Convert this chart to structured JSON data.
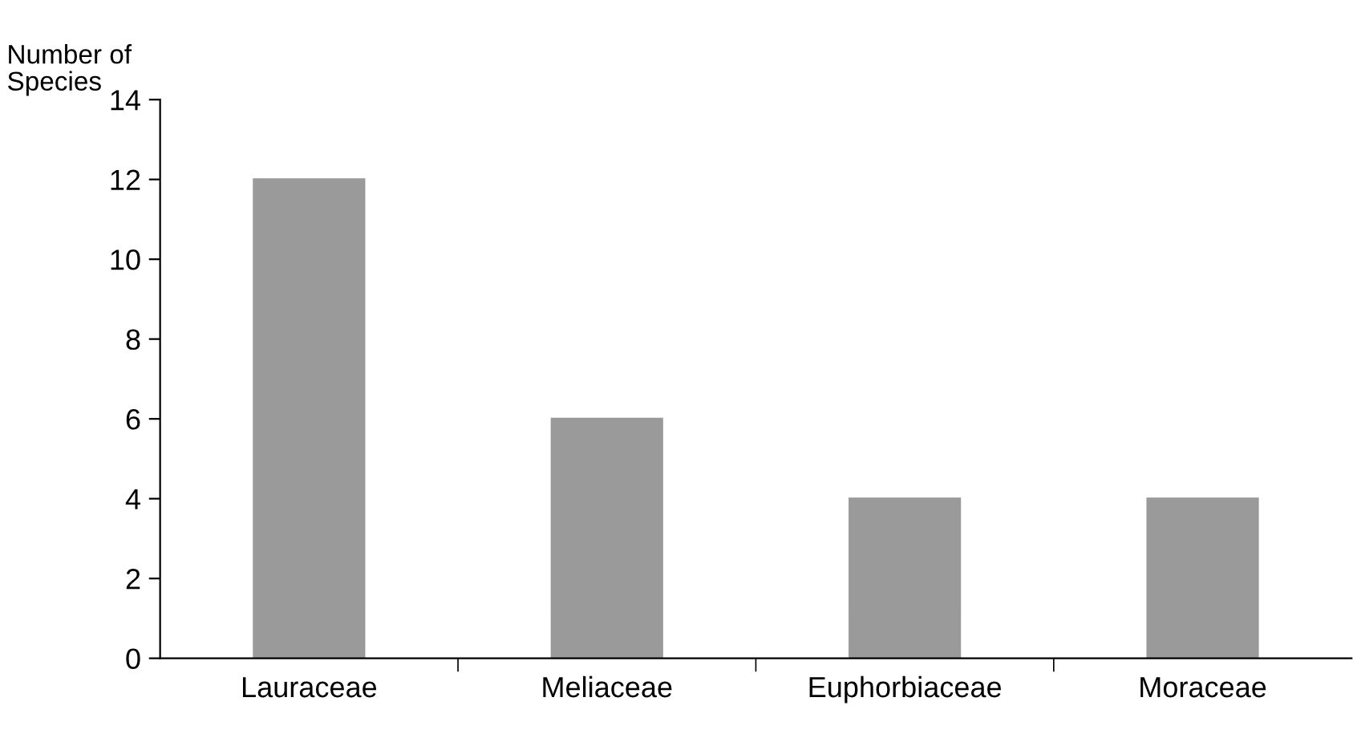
{
  "chart_data": {
    "type": "bar",
    "ylabel": "Number of\nSpecies",
    "categories": [
      "Lauraceae",
      "Meliaceae",
      "Euphorbiaceae",
      "Moraceae"
    ],
    "values": [
      12,
      6,
      4,
      4
    ],
    "color": "#9a9a9a",
    "ylim": [
      0,
      14
    ],
    "yticks": [
      0,
      2,
      4,
      6,
      8,
      10,
      12,
      14
    ],
    "grid": false,
    "legend": false
  }
}
